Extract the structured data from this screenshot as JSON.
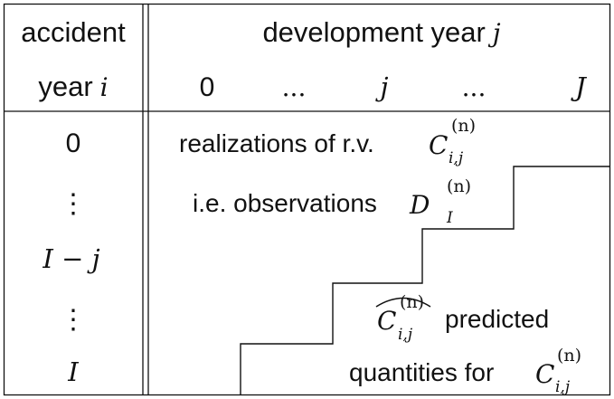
{
  "header": {
    "accident_label_line1": "accident",
    "accident_label_line2": "year",
    "accident_index": "i",
    "development_label": "development year",
    "development_index": "j",
    "columns": [
      "0",
      "...",
      "j",
      "...",
      "J"
    ]
  },
  "rows": [
    "0",
    "⋮",
    "I − j",
    "⋮",
    "I"
  ],
  "annotations": {
    "realizations_text": "realizations of r.v.",
    "observations_text": "i.e. observations",
    "predicted_text": "predicted",
    "quantities_text": "quantities for",
    "C": "C",
    "D": "D",
    "sub_ij": "i,j",
    "sub_I": "I",
    "sup_n": "(n)"
  }
}
